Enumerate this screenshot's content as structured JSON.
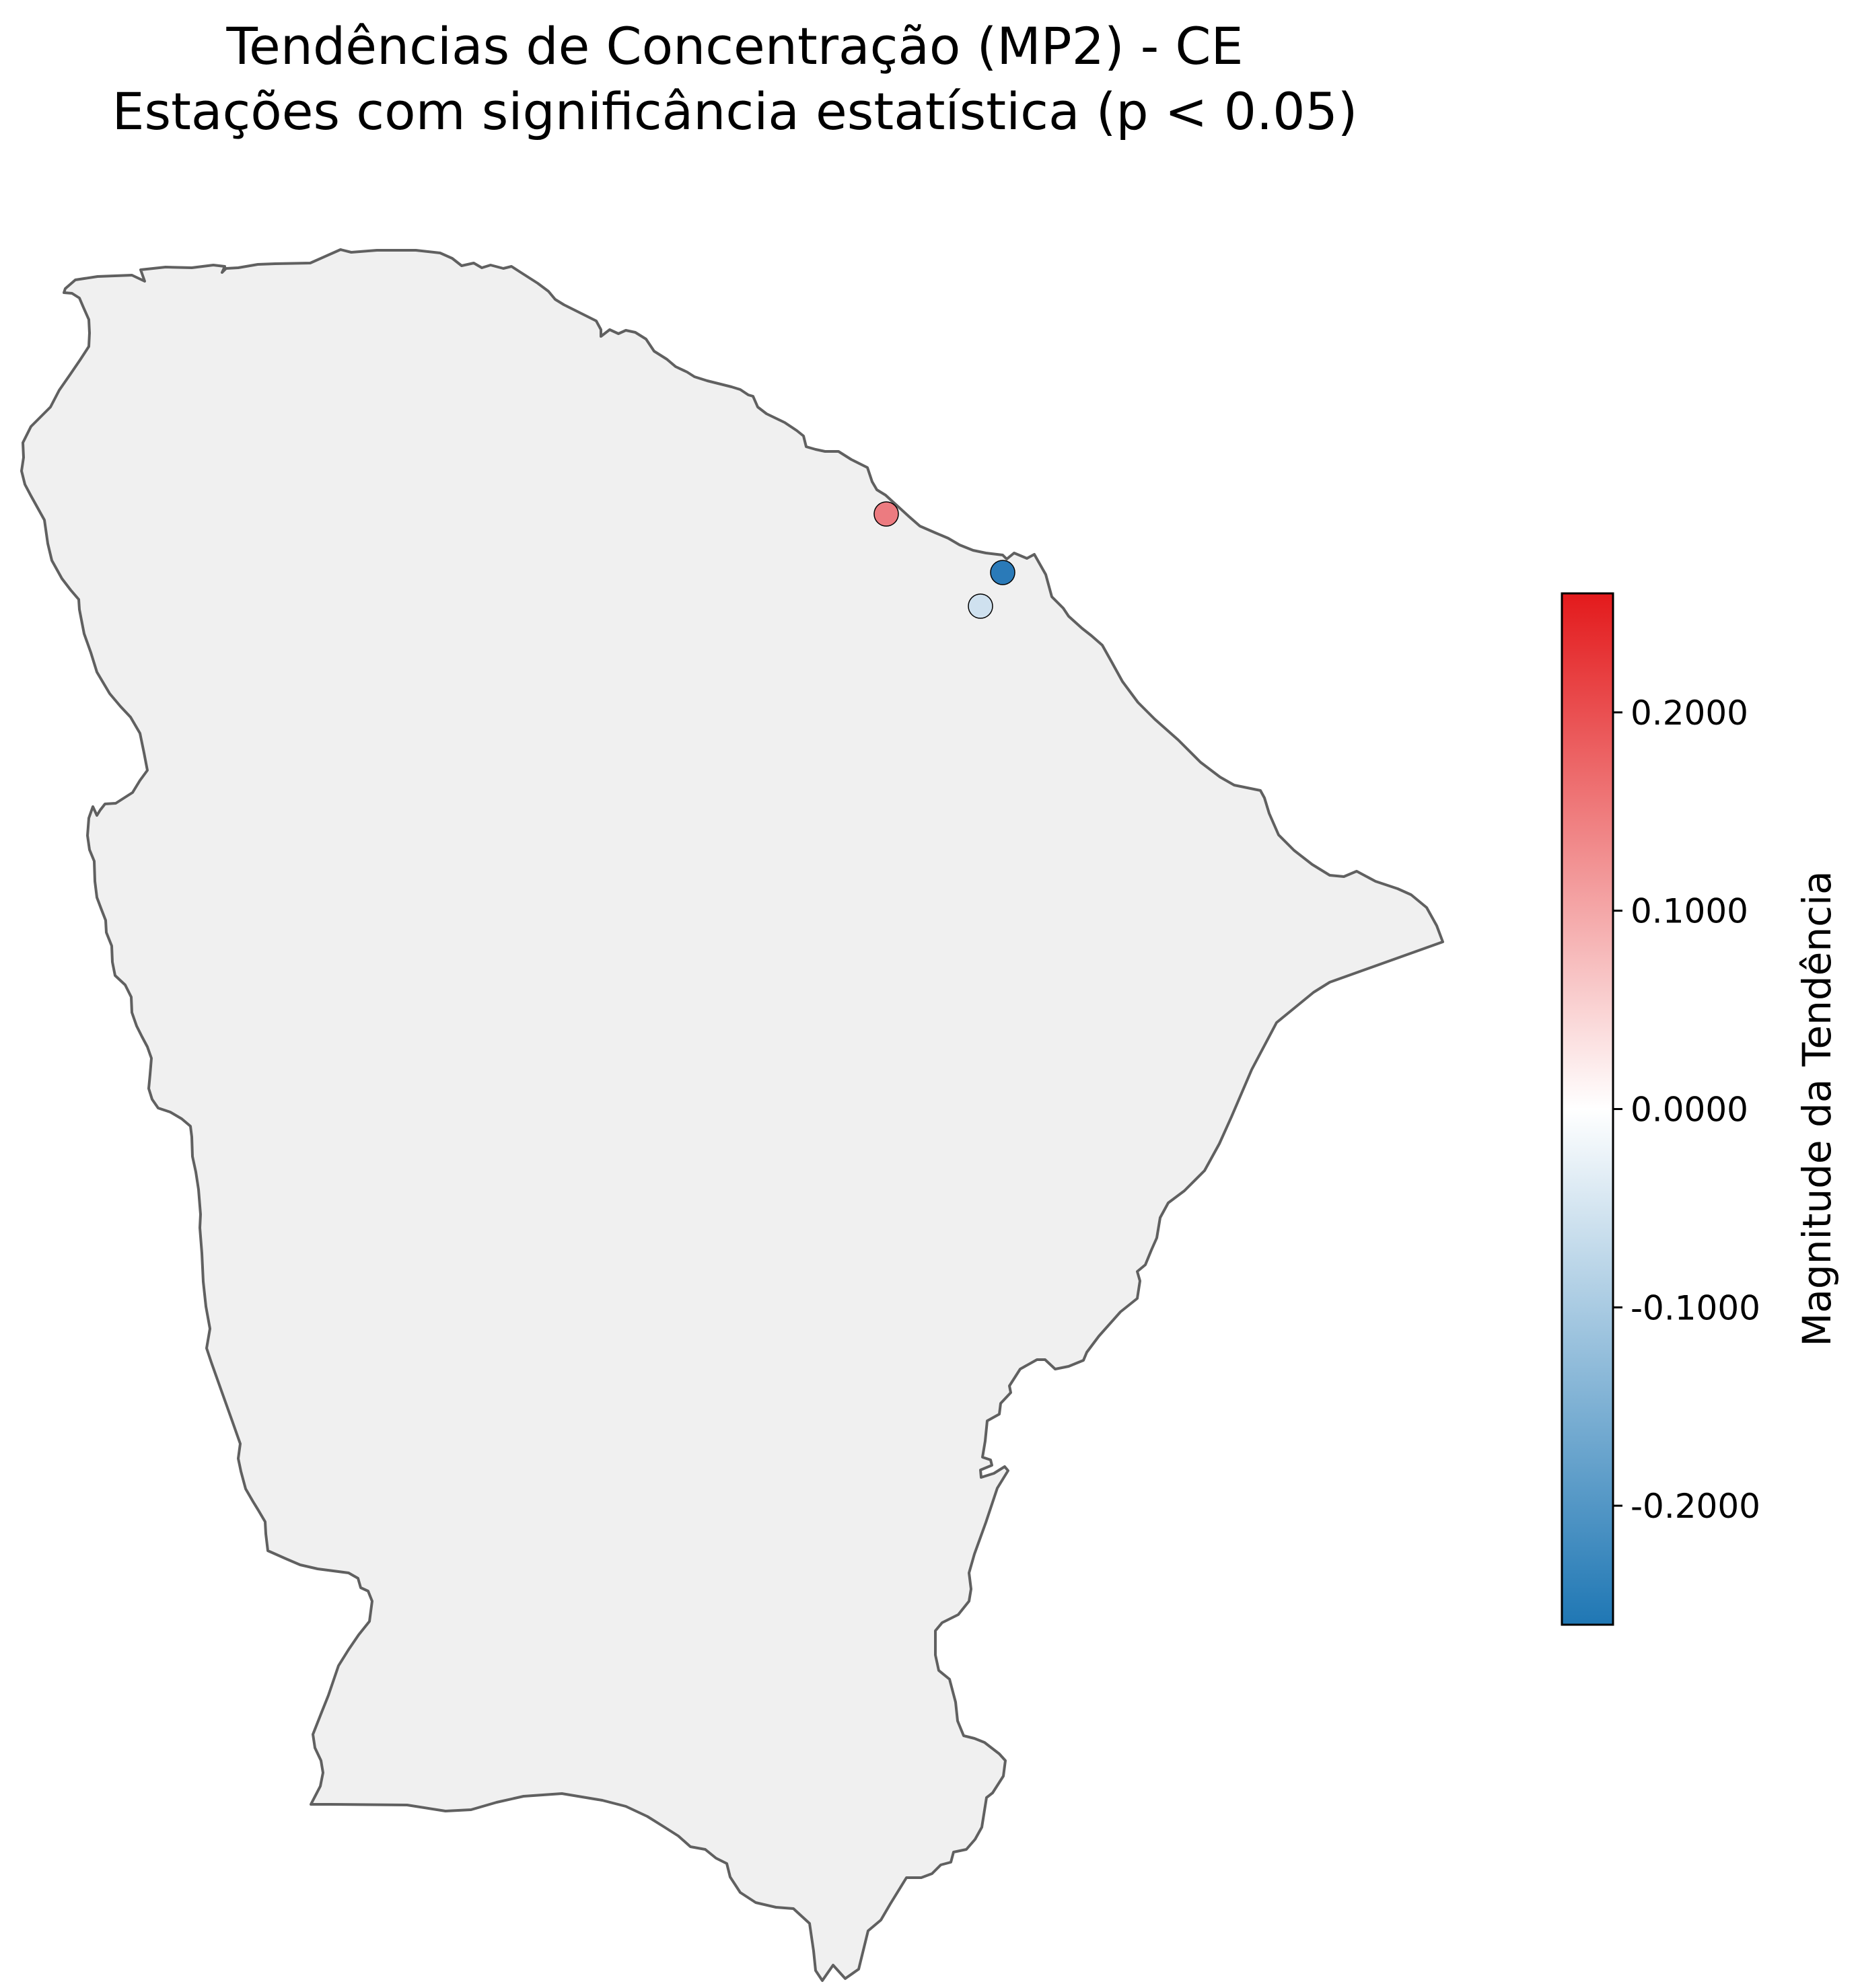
{
  "title": {
    "line1": "Tendências de Concentração (MP2) - CE",
    "line2": "Estações com significância estatística (p < 0.05)"
  },
  "map": {
    "region": "CE",
    "fill_color": "#f0f0f0",
    "border_color": "#606060"
  },
  "stations": [
    {
      "trend": 0.14,
      "color": "#ec7b80"
    },
    {
      "trend": -0.25,
      "color": "#2a7ab8"
    },
    {
      "trend": -0.05,
      "color": "#cfe1ef"
    }
  ],
  "colorbar": {
    "label": "Magnitude da Tendência",
    "min": -0.26,
    "max": 0.26,
    "colors": {
      "low": "#1f77b4",
      "mid": "#ffffff",
      "high": "#e31a1c"
    },
    "ticks": [
      {
        "value": 0.2,
        "label": "0.2000"
      },
      {
        "value": 0.1,
        "label": "0.1000"
      },
      {
        "value": 0.0,
        "label": "0.0000"
      },
      {
        "value": -0.1,
        "label": "-0.1000"
      },
      {
        "value": -0.2,
        "label": "-0.2000"
      }
    ]
  }
}
